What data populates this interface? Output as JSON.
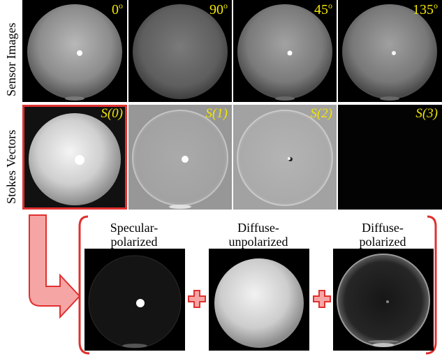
{
  "row_labels": {
    "sensor": "Sensor Images",
    "stokes": "Stokes Vectors"
  },
  "sensor_images": [
    {
      "angle": "0",
      "unit": "o"
    },
    {
      "angle": "90",
      "unit": "o"
    },
    {
      "angle": "45",
      "unit": "o"
    },
    {
      "angle": "135",
      "unit": "o"
    }
  ],
  "stokes_vectors": [
    {
      "label": "S(0)"
    },
    {
      "label": "S(1)"
    },
    {
      "label": "S(2)"
    },
    {
      "label": "S(3)"
    }
  ],
  "decomposition": [
    {
      "line1": "Specular-",
      "line2": "polarized"
    },
    {
      "line1": "Diffuse-",
      "line2": "unpolarized"
    },
    {
      "line1": "Diffuse-",
      "line2": "polarized"
    }
  ],
  "colors": {
    "accent_red": "#e03030",
    "arrow_fill": "#f6a5a5",
    "label_yellow": "#f2e600"
  }
}
